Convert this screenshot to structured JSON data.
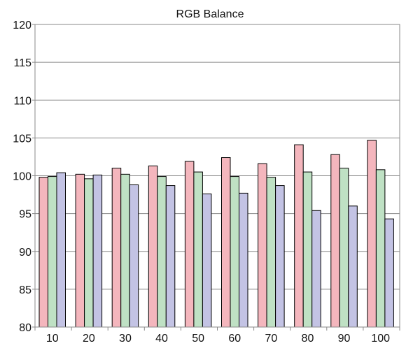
{
  "chart_data": {
    "type": "bar",
    "title": "RGB Balance",
    "xlabel": "",
    "ylabel": "",
    "ylim": [
      80,
      120
    ],
    "yticks": [
      80,
      85,
      90,
      95,
      100,
      105,
      110,
      115,
      120
    ],
    "categories": [
      "10",
      "20",
      "30",
      "40",
      "50",
      "60",
      "70",
      "80",
      "90",
      "100"
    ],
    "grid": true,
    "legend": "none",
    "series": [
      {
        "color": "#f4b6bd",
        "values": [
          99.8,
          100.2,
          101.0,
          101.3,
          101.9,
          102.4,
          101.6,
          104.1,
          102.8,
          104.7
        ]
      },
      {
        "color": "#bfe1c4",
        "values": [
          99.9,
          99.6,
          100.2,
          99.9,
          100.5,
          99.9,
          99.8,
          100.5,
          101.0,
          100.8
        ]
      },
      {
        "color": "#c3c3e4",
        "values": [
          100.4,
          100.1,
          98.8,
          98.7,
          97.6,
          97.7,
          98.7,
          95.4,
          96.0,
          94.3
        ]
      }
    ]
  }
}
